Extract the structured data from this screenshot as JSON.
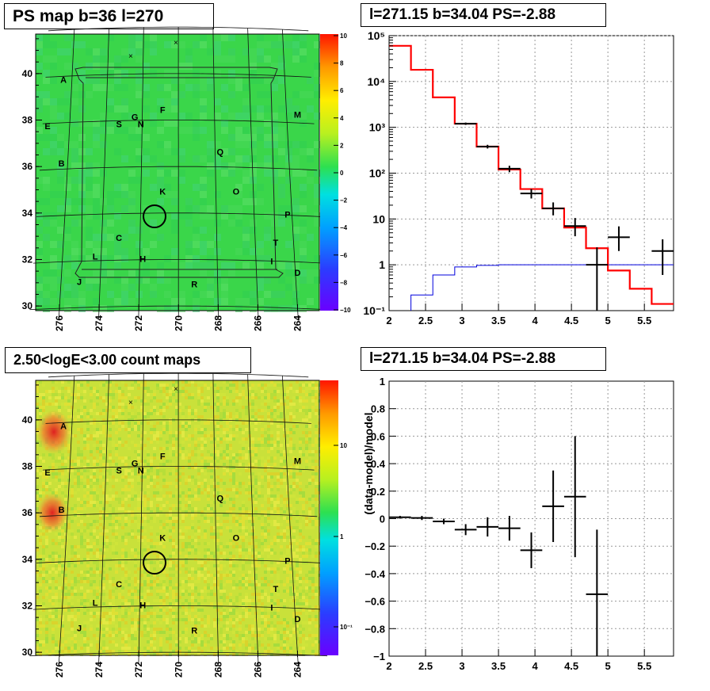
{
  "panels": {
    "tl_title": "PS map b=36 l=270",
    "tr_title": "l=271.15 b=34.04 PS=-2.88",
    "bl_title": "2.50<logE<3.00 count maps",
    "br_title": "l=271.15 b=34.04 PS=-2.88"
  },
  "colors": {
    "map_green": "#3ad64a",
    "model_red": "#ff0000",
    "blue_line": "#0000dd",
    "data_black": "#000000"
  },
  "chart_data": [
    {
      "type": "heatmap",
      "title": "PS map b=36 l=270",
      "xticks": [
        "276",
        "274",
        "272",
        "270",
        "268",
        "266",
        "264"
      ],
      "yticks": [
        "30",
        "32",
        "34",
        "36",
        "38",
        "40"
      ],
      "colorbar": {
        "ticks": [
          "10",
          "8",
          "6",
          "4",
          "2",
          "0",
          "−2",
          "−4",
          "−6",
          "−8",
          "−10"
        ],
        "range": [
          -10,
          10
        ]
      },
      "source_labels": [
        {
          "t": "A",
          "l": 275.8,
          "b": 39.6
        },
        {
          "t": "E",
          "l": 276.6,
          "b": 37.6
        },
        {
          "t": "B",
          "l": 275.9,
          "b": 36.0
        },
        {
          "t": "S",
          "l": 273.0,
          "b": 37.7
        },
        {
          "t": "G",
          "l": 272.2,
          "b": 38.0
        },
        {
          "t": "N",
          "l": 271.9,
          "b": 37.7
        },
        {
          "t": "F",
          "l": 270.8,
          "b": 38.3
        },
        {
          "t": "Q",
          "l": 267.9,
          "b": 36.5
        },
        {
          "t": "M",
          "l": 264.0,
          "b": 38.1
        },
        {
          "t": "K",
          "l": 270.8,
          "b": 34.8
        },
        {
          "t": "O",
          "l": 267.1,
          "b": 34.8
        },
        {
          "t": "P",
          "l": 264.5,
          "b": 33.8
        },
        {
          "t": "C",
          "l": 273.0,
          "b": 32.8
        },
        {
          "t": "L",
          "l": 274.2,
          "b": 32.0
        },
        {
          "t": "H",
          "l": 271.8,
          "b": 31.9
        },
        {
          "t": "T",
          "l": 265.1,
          "b": 32.6
        },
        {
          "t": "I",
          "l": 265.3,
          "b": 31.8
        },
        {
          "t": "D",
          "l": 264.0,
          "b": 31.3
        },
        {
          "t": "J",
          "l": 275.0,
          "b": 30.9
        },
        {
          "t": "R",
          "l": 269.2,
          "b": 30.8
        }
      ],
      "circle": {
        "l": 271.15,
        "b": 33.8
      }
    },
    {
      "type": "line",
      "title": "l=271.15 b=34.04 PS=-2.88",
      "x_log_e_ticks": [
        "2",
        "2.5",
        "3",
        "3.5",
        "4",
        "4.5",
        "5",
        "5.5"
      ],
      "ylim": [
        0.1,
        100000
      ],
      "yscale": "log",
      "yticks": [
        "10⁻¹",
        "1",
        "10",
        "10²",
        "10³",
        "10⁴",
        "10⁵"
      ],
      "model_steps": [
        {
          "x0": 2.0,
          "x1": 2.3,
          "y": 60000
        },
        {
          "x0": 2.3,
          "x1": 2.6,
          "y": 18000
        },
        {
          "x0": 2.6,
          "x1": 2.9,
          "y": 4500
        },
        {
          "x0": 2.9,
          "x1": 3.2,
          "y": 1200
        },
        {
          "x0": 3.2,
          "x1": 3.5,
          "y": 380
        },
        {
          "x0": 3.5,
          "x1": 3.8,
          "y": 120
        },
        {
          "x0": 3.8,
          "x1": 4.1,
          "y": 45
        },
        {
          "x0": 4.1,
          "x1": 4.4,
          "y": 17
        },
        {
          "x0": 4.4,
          "x1": 4.7,
          "y": 6.5
        },
        {
          "x0": 4.7,
          "x1": 5.0,
          "y": 2.3
        },
        {
          "x0": 5.0,
          "x1": 5.3,
          "y": 0.75
        },
        {
          "x0": 5.3,
          "x1": 5.6,
          "y": 0.3
        },
        {
          "x0": 5.6,
          "x1": 5.9,
          "y": 0.14
        }
      ],
      "blue_steps": [
        {
          "x0": 2.3,
          "x1": 2.6,
          "y": 0.22
        },
        {
          "x0": 2.6,
          "x1": 2.9,
          "y": 0.6
        },
        {
          "x0": 2.9,
          "x1": 3.2,
          "y": 0.9
        },
        {
          "x0": 3.2,
          "x1": 3.5,
          "y": 0.97
        },
        {
          "x0": 3.5,
          "x1": 5.9,
          "y": 1.0
        }
      ],
      "data_points": [
        {
          "x": 3.05,
          "y": 1200,
          "lo": 1130,
          "hi": 1270
        },
        {
          "x": 3.35,
          "y": 380,
          "lo": 345,
          "hi": 415
        },
        {
          "x": 3.65,
          "y": 125,
          "lo": 105,
          "hi": 145
        },
        {
          "x": 3.95,
          "y": 36,
          "lo": 28,
          "hi": 45
        },
        {
          "x": 4.25,
          "y": 17,
          "lo": 12,
          "hi": 23
        },
        {
          "x": 4.55,
          "y": 7,
          "lo": 4.2,
          "hi": 10.5
        },
        {
          "x": 4.85,
          "y": 1.0,
          "lo": 0.1,
          "hi": 2.4
        },
        {
          "x": 5.15,
          "y": 4.0,
          "lo": 2.0,
          "hi": 6.9
        },
        {
          "x": 5.75,
          "y": 2.0,
          "lo": 0.6,
          "hi": 3.6
        }
      ]
    },
    {
      "type": "heatmap",
      "title": "2.50<logE<3.00 count maps",
      "xticks": [
        "276",
        "274",
        "272",
        "270",
        "268",
        "266",
        "264"
      ],
      "yticks": [
        "30",
        "32",
        "34",
        "36",
        "38",
        "40"
      ],
      "colorbar": {
        "ticks": [
          "10",
          "1",
          "10⁻¹"
        ],
        "scale": "log"
      },
      "hotspots": [
        {
          "t": "A",
          "l": 276.0,
          "b": 39.6
        },
        {
          "t": "B",
          "l": 276.1,
          "b": 36.0
        }
      ]
    },
    {
      "type": "scatter",
      "title": "l=271.15 b=34.04 PS=-2.88",
      "ylabel": "(data-model)/model",
      "xlim": [
        2,
        5.9
      ],
      "ylim": [
        -1,
        1
      ],
      "xticks": [
        "2",
        "2.5",
        "3",
        "3.5",
        "4",
        "4.5",
        "5",
        "5.5"
      ],
      "yticks": [
        "1",
        "0.8",
        "0.6",
        "0.4",
        "0.2",
        "0",
        "−0.2",
        "−0.4",
        "−0.6",
        "−0.8",
        "−1"
      ],
      "points": [
        {
          "x": 2.15,
          "y": 0.01,
          "dy": 0.01
        },
        {
          "x": 2.45,
          "y": 0.005,
          "dy": 0.015
        },
        {
          "x": 2.75,
          "y": -0.02,
          "dy": 0.02
        },
        {
          "x": 3.05,
          "y": -0.08,
          "dy": 0.04
        },
        {
          "x": 3.35,
          "y": -0.06,
          "dy": 0.07
        },
        {
          "x": 3.65,
          "y": -0.07,
          "dy": 0.09
        },
        {
          "x": 3.95,
          "y": -0.23,
          "dy": 0.13
        },
        {
          "x": 4.25,
          "y": 0.09,
          "dy": 0.26
        },
        {
          "x": 4.55,
          "y": 0.16,
          "dy": 0.44
        },
        {
          "x": 4.85,
          "y": -0.55,
          "dy": 0.47
        }
      ]
    }
  ]
}
